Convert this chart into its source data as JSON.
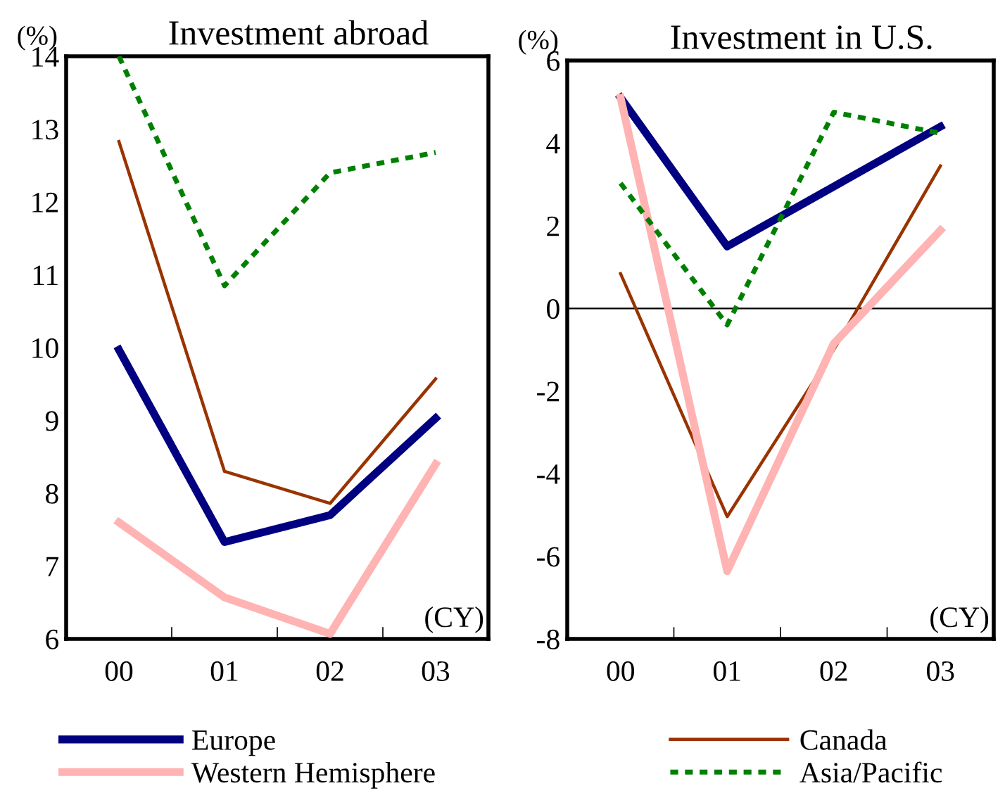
{
  "chart_data": [
    {
      "type": "line",
      "title": "Investment abroad",
      "ylabel": "(%)",
      "xlabel": "(CY)",
      "categories": [
        "00",
        "01",
        "02",
        "03"
      ],
      "series": [
        {
          "name": "Europe",
          "color": "#000080",
          "line_style": "solid",
          "values": [
            9.97,
            7.33,
            7.7,
            9.03
          ]
        },
        {
          "name": "Canada",
          "color": "#993300",
          "line_style": "solid",
          "values": [
            12.83,
            8.3,
            7.86,
            9.57
          ]
        },
        {
          "name": "Western Hemisphere",
          "color": "#ffb3b3",
          "line_style": "solid",
          "values": [
            7.6,
            6.57,
            6.07,
            8.4
          ]
        },
        {
          "name": "Asia/Pacific",
          "color": "#008000",
          "line_style": "dashed",
          "values": [
            14.0,
            10.85,
            12.4,
            12.68
          ]
        }
      ],
      "ylim": [
        6,
        14
      ],
      "yticks": [
        6,
        7,
        8,
        9,
        10,
        11,
        12,
        13,
        14
      ],
      "grid": false,
      "legend": "bottom"
    },
    {
      "type": "line",
      "title": "Investment in U.S.",
      "ylabel": "(%)",
      "xlabel": "(CY)",
      "categories": [
        "00",
        "01",
        "02",
        "03"
      ],
      "series": [
        {
          "color": "#000080",
          "line_style": "solid",
          "values": [
            5.1,
            1.5,
            2.95,
            4.4
          ]
        },
        {
          "color": "#993300",
          "line_style": "solid",
          "values": [
            0.84,
            -5.04,
            -1.0,
            3.45
          ]
        },
        {
          "color": "#ffb3b3",
          "line_style": "solid",
          "values": [
            5.1,
            -6.36,
            -0.85,
            1.89
          ]
        },
        {
          "color": "#008000",
          "line_style": "dashed",
          "values": [
            3.03,
            -0.4,
            4.75,
            4.24
          ]
        }
      ],
      "ylim": [
        -8,
        6
      ],
      "yticks": [
        -8,
        -6,
        -4,
        -2,
        0,
        2,
        4,
        6
      ],
      "grid": false,
      "ref_lines": [
        {
          "axis": "y",
          "value": 0,
          "color": "#000000",
          "line_style": "solid"
        }
      ]
    }
  ]
}
